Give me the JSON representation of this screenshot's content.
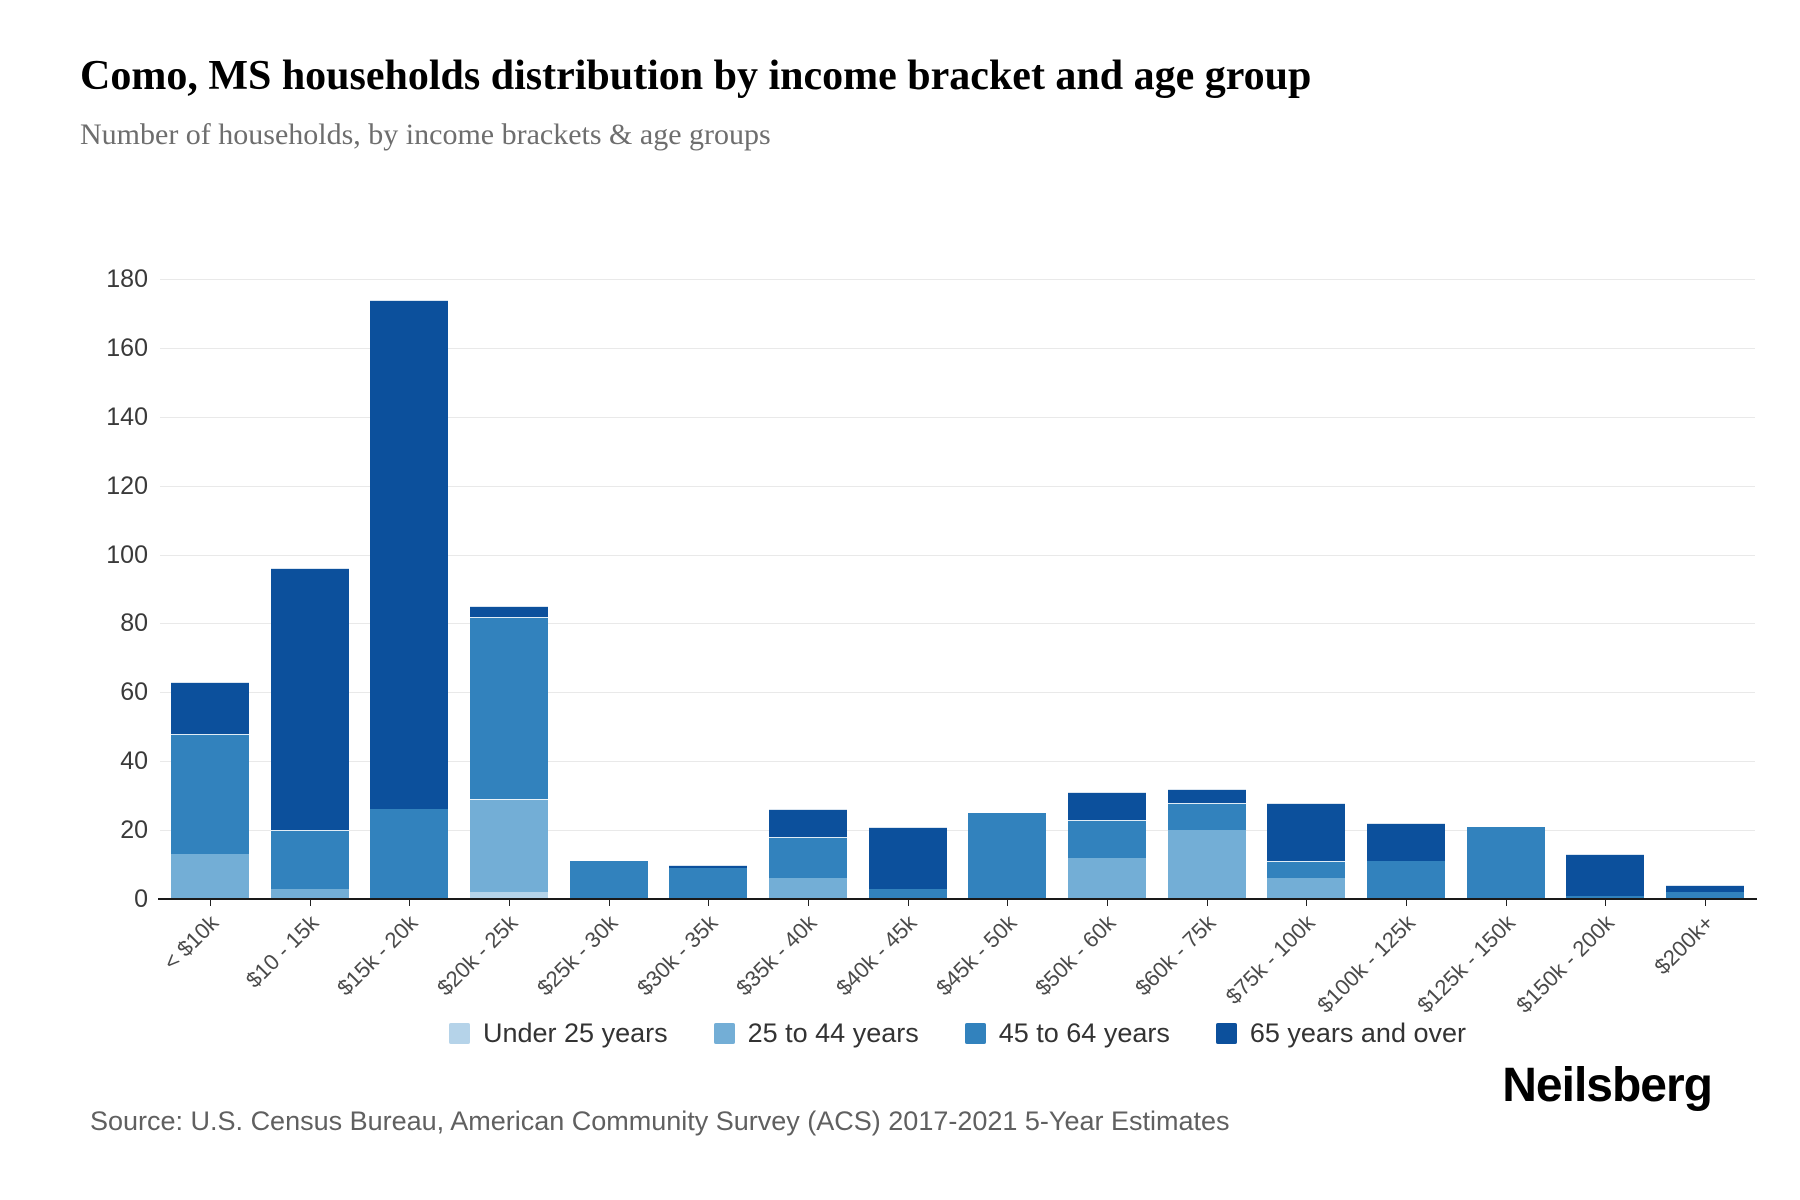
{
  "title": "Como, MS households distribution by income bracket and age group",
  "subtitle": "Number of households, by income brackets & age groups",
  "source": "Source: U.S. Census Bureau, American Community Survey (ACS) 2017-2021 5-Year Estimates",
  "logo_text": "Neilsberg",
  "chart_data": {
    "type": "bar",
    "stacked": true,
    "title": "Como, MS households distribution by income bracket and age group",
    "subtitle": "Number of households, by income brackets & age groups",
    "xlabel": "",
    "ylabel": "",
    "ylim": [
      0,
      180
    ],
    "yticks": [
      0,
      20,
      40,
      60,
      80,
      100,
      120,
      140,
      160,
      180
    ],
    "grid": true,
    "legend_position": "bottom",
    "categories": [
      "< $10k",
      "$10 - 15k",
      "$15k - 20k",
      "$20k - 25k",
      "$25k - 30k",
      "$30k - 35k",
      "$35k - 40k",
      "$40k - 45k",
      "$45k - 50k",
      "$50k - 60k",
      "$60k - 75k",
      "$75k - 100k",
      "$100k - 125k",
      "$125k - 150k",
      "$150k - 200k",
      "$200k+"
    ],
    "series": [
      {
        "name": "Under 25 years",
        "color": "#b5d3e9",
        "values": [
          0,
          0,
          0,
          2,
          0,
          0,
          0,
          0,
          0,
          0,
          0,
          0,
          0,
          0,
          0,
          0
        ]
      },
      {
        "name": "25 to 44 years",
        "color": "#73aed6",
        "values": [
          13,
          3,
          0,
          27,
          0,
          0,
          6,
          0,
          0,
          12,
          20,
          6,
          0,
          0,
          0,
          0
        ]
      },
      {
        "name": "45 to 64 years",
        "color": "#3282bd",
        "values": [
          35,
          17,
          26,
          53,
          11,
          9,
          12,
          3,
          25,
          11,
          8,
          5,
          11,
          21,
          1,
          2
        ]
      },
      {
        "name": "65 years and over",
        "color": "#0c509c",
        "values": [
          15,
          76,
          148,
          3,
          0,
          1,
          8,
          18,
          0,
          8,
          4,
          17,
          11,
          0,
          12,
          2
        ]
      }
    ],
    "totals": [
      63,
      96,
      174,
      85,
      11,
      10,
      26,
      21,
      25,
      31,
      32,
      28,
      22,
      21,
      13,
      4
    ]
  }
}
